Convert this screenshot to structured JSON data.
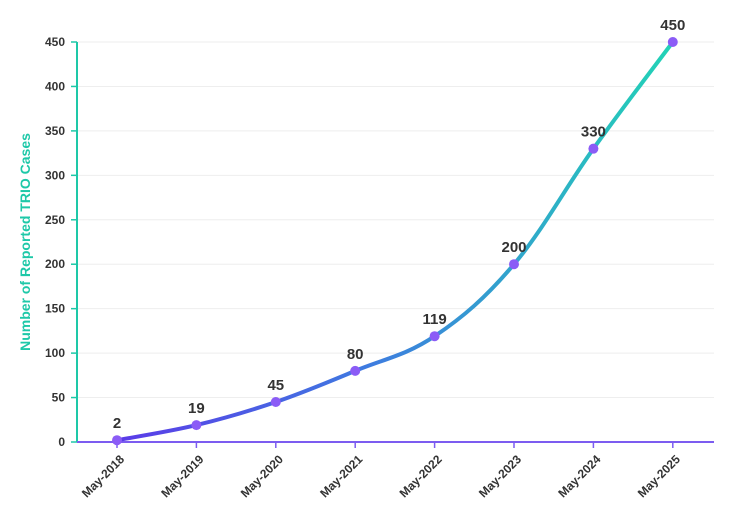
{
  "colors": {
    "accent_teal": "#1ec8a8",
    "axis_purple": "#7c5cf0",
    "line_start": "#5b3be8",
    "line_end": "#22d3b6",
    "point": "#8b5cf6",
    "label": "#333333",
    "grid": "#eeeeee"
  },
  "chart_data": {
    "type": "line",
    "categories": [
      "May-2018",
      "May-2019",
      "May-2020",
      "May-2021",
      "May-2022",
      "May-2023",
      "May-2024",
      "May-2025"
    ],
    "values": [
      2,
      19,
      45,
      80,
      119,
      200,
      330,
      450
    ],
    "ylabel": "Number of Reported TRIO Cases",
    "xlabel": "",
    "title": "",
    "ylim": [
      0,
      450
    ],
    "yticks": [
      0,
      50,
      100,
      150,
      200,
      250,
      300,
      350,
      400,
      450
    ],
    "grid": true,
    "data_labels": true
  }
}
